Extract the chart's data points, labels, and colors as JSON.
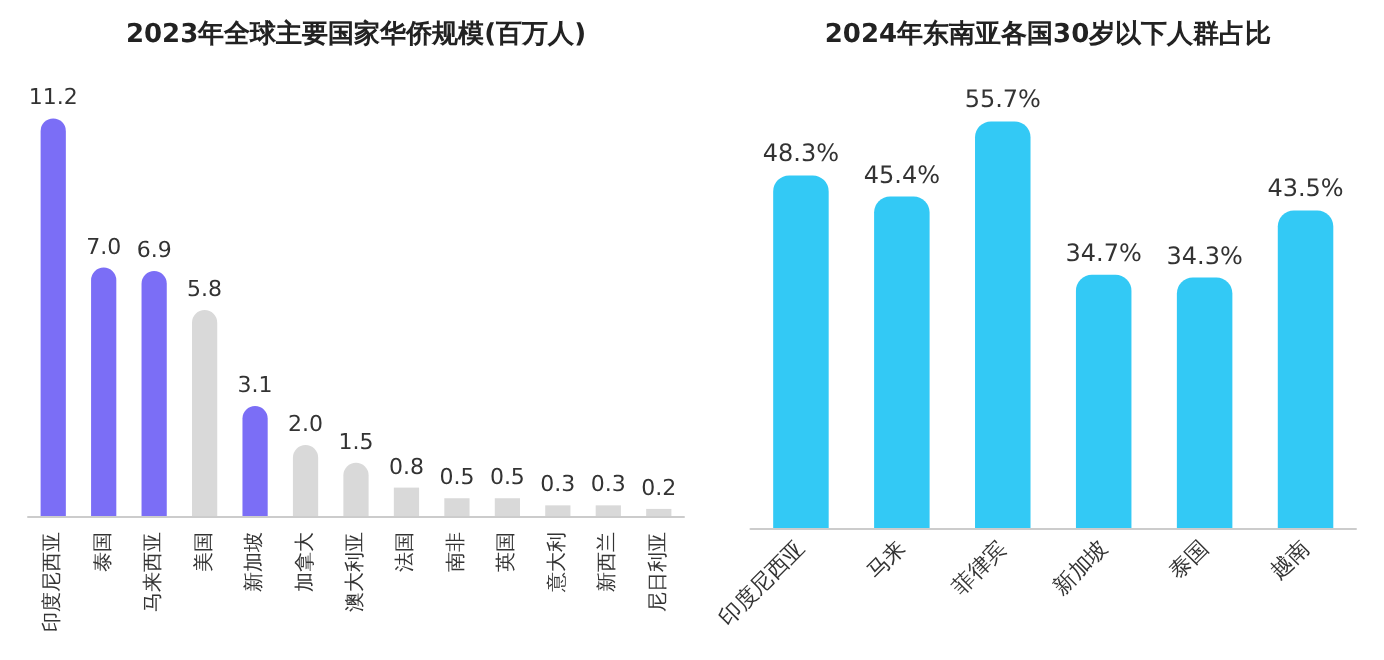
{
  "chart_data": [
    {
      "type": "bar",
      "title": "2023年全球主要国家华侨规模(百万人)",
      "categories": [
        "印度尼西亚",
        "泰国",
        "马来西亚",
        "美国",
        "新加坡",
        "加拿大",
        "澳大利亚",
        "法国",
        "南非",
        "英国",
        "意大利",
        "新西兰",
        "尼日利亚"
      ],
      "values": [
        11.2,
        7.0,
        6.9,
        5.8,
        3.1,
        2.0,
        1.5,
        0.8,
        0.5,
        0.5,
        0.3,
        0.3,
        0.2
      ],
      "colors": [
        "#7b6ef6",
        "#7b6ef6",
        "#7b6ef6",
        "#d9d9d9",
        "#7b6ef6",
        "#d9d9d9",
        "#d9d9d9",
        "#d9d9d9",
        "#d9d9d9",
        "#d9d9d9",
        "#d9d9d9",
        "#d9d9d9",
        "#d9d9d9"
      ],
      "value_labels": [
        "11.2",
        "7.0",
        "6.9",
        "5.8",
        "3.1",
        "2.0",
        "1.5",
        "0.8",
        "0.5",
        "0.5",
        "0.3",
        "0.3",
        "0.2"
      ]
    },
    {
      "type": "bar",
      "title": "2024年东南亚各国30岁以下人群占比",
      "categories": [
        "印度尼西亚",
        "马来",
        "菲律宾",
        "新加坡",
        "泰国",
        "越南"
      ],
      "values": [
        48.3,
        45.4,
        55.7,
        34.7,
        34.3,
        43.5
      ],
      "color": "#33c9f5",
      "value_labels": [
        "48.3%",
        "45.4%",
        "55.7%",
        "34.7%",
        "34.3%",
        "43.5%"
      ]
    }
  ]
}
